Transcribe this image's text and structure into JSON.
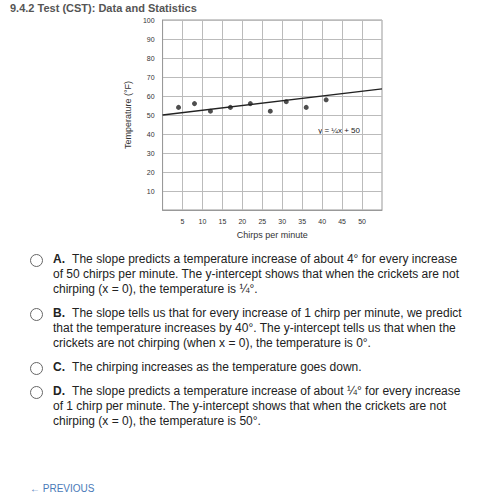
{
  "header": {
    "title": "9.4.2 Test (CST): Data and Statistics"
  },
  "chart_data": {
    "type": "scatter",
    "x_label": "Chirps per minute",
    "y_label": "Temperature (°F)",
    "annotation": "y = ¼x + 50",
    "xlim": [
      0,
      55
    ],
    "xticks": [
      5,
      10,
      15,
      20,
      25,
      30,
      35,
      40,
      45,
      50
    ],
    "ylim": [
      0,
      100
    ],
    "yticks": [
      10,
      20,
      30,
      40,
      50,
      60,
      70,
      80,
      90,
      100
    ],
    "grid": true,
    "series": [
      {
        "type": "scatter",
        "color": "#222222",
        "marker": "circle",
        "x": [
          4,
          8,
          12,
          17,
          22,
          27,
          31,
          36,
          41
        ],
        "values": [
          54,
          56,
          52,
          54,
          56,
          52,
          57,
          54,
          58
        ]
      },
      {
        "type": "line",
        "color": "#222222",
        "line_style": "solid",
        "x": [
          0,
          55
        ],
        "values": [
          50,
          63.75
        ]
      }
    ]
  },
  "options": [
    {
      "letter": "A.",
      "text": "The slope predicts a temperature increase of about 4° for every increase of 50 chirps per minute. The y-intercept shows that when the crickets are not chirping (x = 0), the temperature is ¼°."
    },
    {
      "letter": "B.",
      "text": "The slope tells us that for every increase of 1 chirp per minute, we predict that the temperature increases by 40°. The y-intercept tells us that when the crickets are not chirping (when x = 0), the temperature is 0°."
    },
    {
      "letter": "C.",
      "text": "The chirping increases as the temperature goes down."
    },
    {
      "letter": "D.",
      "text": "The slope predicts a temperature increase of about ¼° for every increase of 1 chirp per minute. The y-intercept shows that when the crickets are not chirping (x = 0), the temperature is 50°."
    }
  ],
  "footer": "← PREVIOUS"
}
